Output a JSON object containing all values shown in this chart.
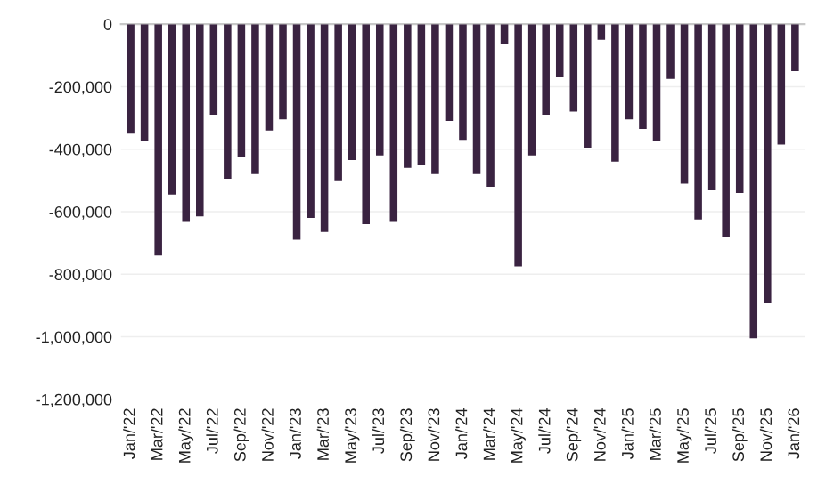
{
  "chart_data": {
    "type": "bar",
    "categories": [
      "Jan/'22",
      null,
      "Mar/'22",
      null,
      "May/'22",
      null,
      "Jul/'22",
      null,
      "Sep/'22",
      null,
      "Nov/'22",
      null,
      "Jan/'23",
      null,
      "Mar/'23",
      null,
      "May/'23",
      null,
      "Jul/'23",
      null,
      "Sep/'23",
      null,
      "Nov/'23",
      null,
      "Jan/'24",
      null,
      "Mar/'24",
      null,
      "May/'24",
      null,
      "Jul/'24",
      null,
      "Sep/'24",
      null,
      "Nov/'24",
      null,
      "Jan/'25",
      null,
      "Mar/'25",
      null,
      "May/'25",
      null,
      "Jul/'25",
      null,
      "Sep/'25",
      null,
      "Nov/'25",
      null,
      "Jan/'26"
    ],
    "values": [
      -350000,
      -375000,
      -740000,
      -545000,
      -630000,
      -615000,
      -290000,
      -495000,
      -425000,
      -480000,
      -340000,
      -305000,
      -690000,
      -620000,
      -665000,
      -500000,
      -435000,
      -640000,
      -420000,
      -630000,
      -460000,
      -450000,
      -480000,
      -310000,
      -370000,
      -480000,
      -520000,
      -65000,
      -775000,
      -420000,
      -290000,
      -170000,
      -280000,
      -395000,
      -50000,
      -440000,
      -305000,
      -335000,
      -375000,
      -175000,
      -510000,
      -625000,
      -530000,
      -680000,
      -540000,
      -1005000,
      -890000,
      -385000,
      -150000
    ],
    "color": "#3a2341",
    "ylim": [
      -1200000,
      0
    ],
    "yticks": [
      {
        "value": -1200000,
        "label": "-1,200,000"
      },
      {
        "value": -1000000,
        "label": "-1,000,000"
      },
      {
        "value": -800000,
        "label": "-800,000"
      },
      {
        "value": -600000,
        "label": "-600,000"
      },
      {
        "value": -400000,
        "label": "-400,000"
      },
      {
        "value": -200000,
        "label": "-200,000"
      },
      0
    ],
    "grid": "y"
  }
}
